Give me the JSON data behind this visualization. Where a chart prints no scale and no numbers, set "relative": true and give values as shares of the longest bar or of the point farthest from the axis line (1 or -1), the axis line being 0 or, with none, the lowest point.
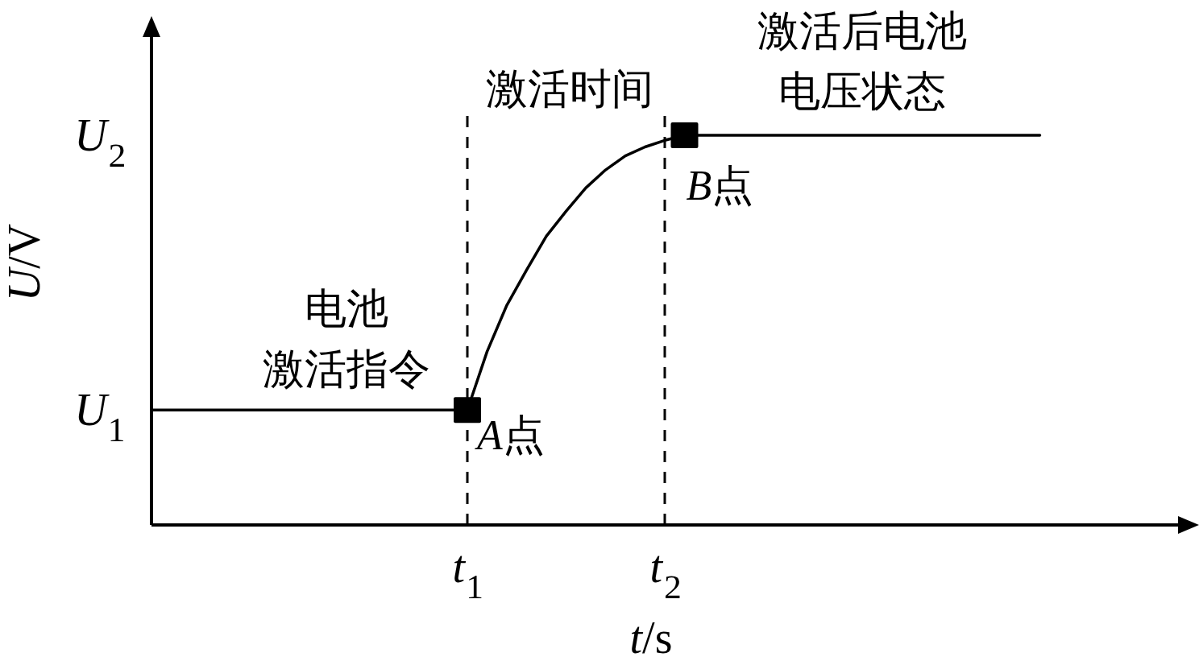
{
  "chart_data": {
    "type": "line",
    "relative": true,
    "xlabel": "t/s",
    "ylabel": "U/V",
    "categories": [
      null,
      null,
      null,
      null,
      null,
      null,
      null,
      null,
      null,
      null,
      null,
      null,
      null,
      null,
      null,
      null,
      "t₁",
      null,
      null,
      null,
      null,
      null,
      null,
      null,
      null,
      null,
      "t₂",
      null,
      null,
      null,
      null,
      null,
      null,
      null,
      null,
      null,
      null,
      null,
      null,
      null,
      null,
      null,
      null,
      null,
      null,
      null
    ],
    "series": [
      {
        "color": "#000000",
        "values": [
          0.295,
          0.295,
          0.295,
          0.295,
          0.295,
          0.295,
          0.295,
          0.295,
          0.295,
          0.295,
          0.295,
          0.295,
          0.295,
          0.295,
          0.295,
          0.295,
          0.295,
          0.445,
          0.564,
          0.654,
          0.741,
          0.805,
          0.865,
          0.911,
          0.947,
          0.97,
          0.987,
          1,
          1,
          1,
          1,
          1,
          1,
          1,
          1,
          1,
          1,
          1,
          1,
          1,
          1,
          1,
          1,
          1,
          1,
          1
        ]
      },
      {
        "type": "scatter",
        "color": "#000000",
        "marker": "square",
        "values": [
          null,
          null,
          null,
          null,
          null,
          null,
          null,
          null,
          null,
          null,
          null,
          null,
          null,
          null,
          null,
          null,
          0.295,
          null,
          null,
          null,
          null,
          null,
          null,
          null,
          null,
          null,
          null,
          1,
          null,
          null,
          null,
          null,
          null,
          null,
          null,
          null,
          null,
          null,
          null,
          null,
          null,
          null,
          null,
          null,
          null,
          null
        ]
      }
    ],
    "ref_lines": [
      {
        "axis": "x",
        "value": "t₁",
        "line_style": "dashed"
      },
      {
        "axis": "x",
        "value": "t₂",
        "line_style": "dashed"
      }
    ],
    "annotations": [
      "电池激活指令",
      "激活时间",
      "激活后电池电压状态",
      "A点",
      "B点",
      "U₁",
      "U₂"
    ]
  }
}
